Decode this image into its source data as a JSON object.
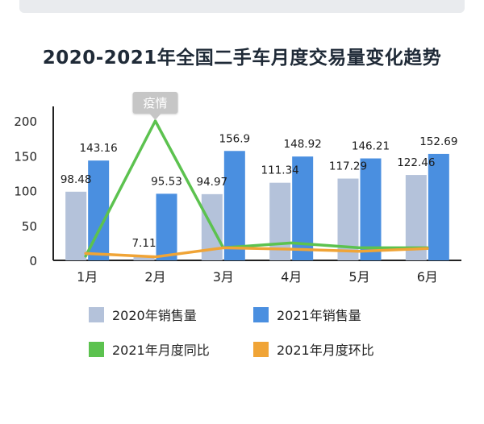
{
  "chart_data": {
    "type": "bar",
    "title": "2020-2021年全国二手车月度交易量变化趋势",
    "categories": [
      "1月",
      "2月",
      "3月",
      "4月",
      "5月",
      "6月"
    ],
    "ylim": [
      0,
      200
    ],
    "yticks": [
      "0",
      "50",
      "100",
      "150",
      "200"
    ],
    "series": [
      {
        "name": "2020年销售量",
        "kind": "bar",
        "color": "#b4c2da",
        "values": [
          98.48,
          7.11,
          94.97,
          111.34,
          117.29,
          122.46
        ]
      },
      {
        "name": "2021年销售量",
        "kind": "bar",
        "color": "#4a8fe0",
        "values": [
          143.16,
          95.53,
          156.9,
          148.92,
          146.21,
          152.69
        ]
      },
      {
        "name": "2021年月度同比",
        "kind": "line",
        "color": "#5cc24f",
        "values": [
          6,
          200,
          18,
          25,
          18,
          18
        ]
      },
      {
        "name": "2021年月度环比",
        "kind": "line",
        "color": "#f0a436",
        "values": [
          10,
          5,
          18,
          16,
          13,
          17
        ]
      }
    ],
    "annotation": {
      "text": "疫情",
      "category": "2月"
    },
    "legend_position": "bottom"
  }
}
